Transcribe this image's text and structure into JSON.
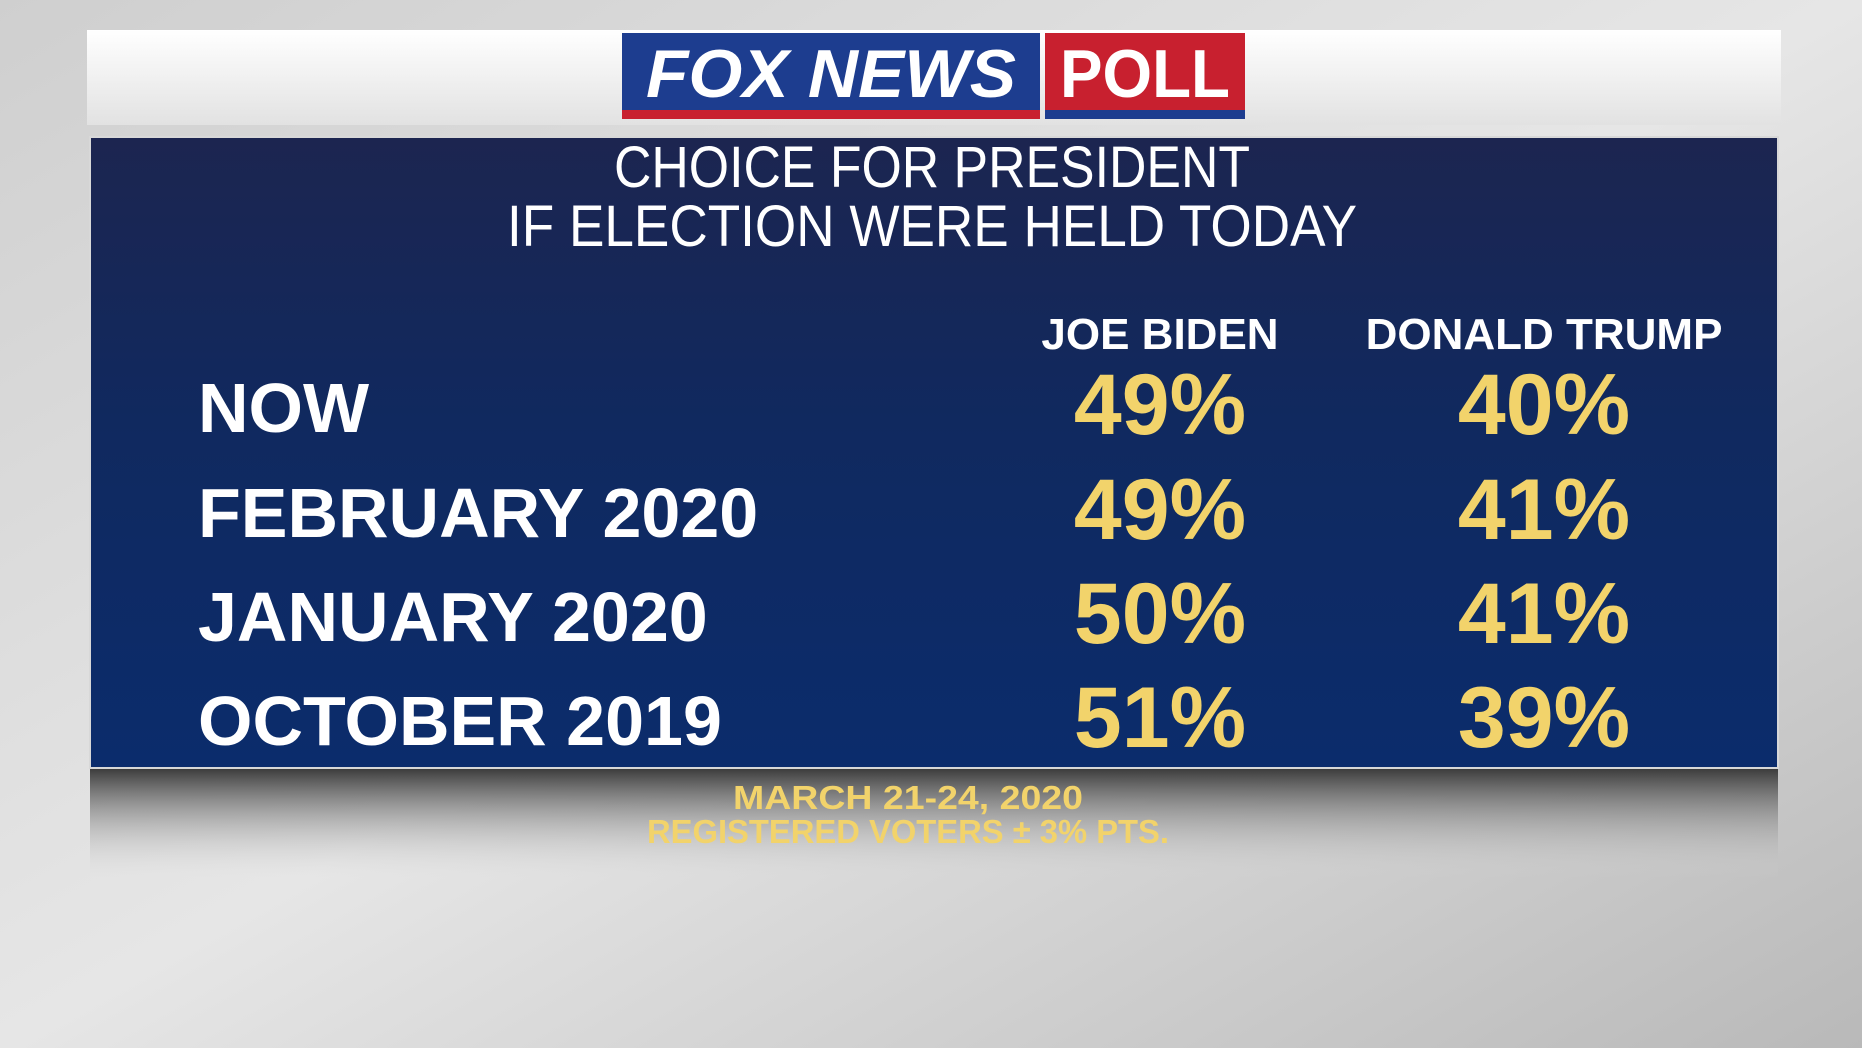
{
  "header": {
    "logo_left": "FOX NEWS",
    "logo_right": "POLL"
  },
  "title": [
    "CHOICE FOR PRESIDENT",
    "IF ELECTION WERE HELD TODAY"
  ],
  "table": {
    "columns": [
      "JOE BIDEN",
      "DONALD TRUMP"
    ],
    "rows": [
      [
        "NOW",
        "49%",
        "40%"
      ],
      [
        "FEBRUARY 2020",
        "49%",
        "41%"
      ],
      [
        "JANUARY 2020",
        "50%",
        "41%"
      ],
      [
        "OCTOBER 2019",
        "51%",
        "39%"
      ]
    ]
  },
  "footer": [
    "MARCH 21-24, 2020",
    "REGISTERED VOTERS ± 3% PTS."
  ]
}
